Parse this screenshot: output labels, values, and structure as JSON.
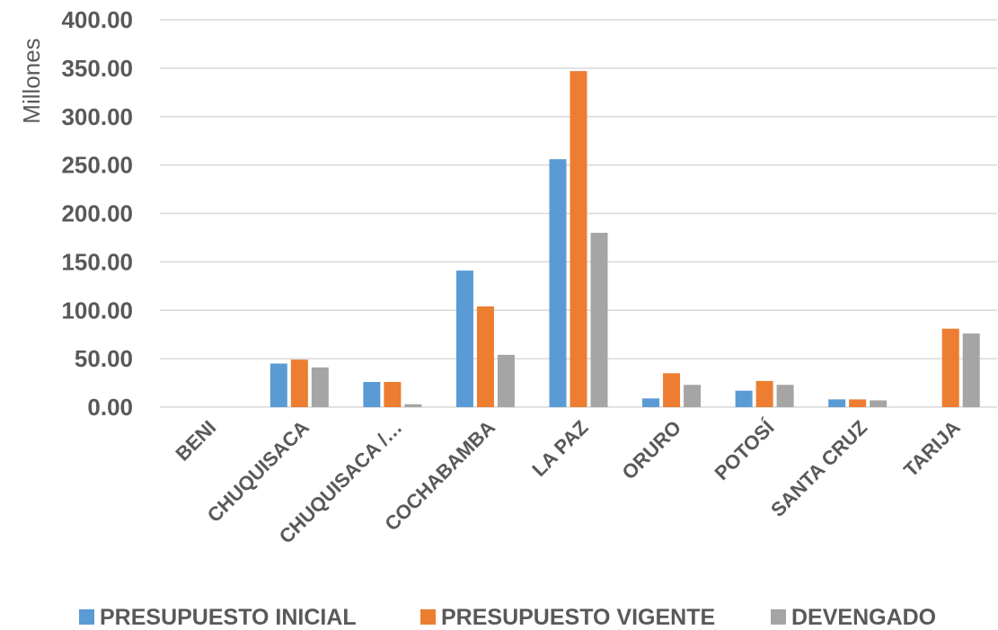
{
  "chart_data": {
    "type": "bar",
    "unit_label": "Millones",
    "categories": [
      "BENI",
      "CHUQUISACA",
      "CHUQUISACA /…",
      "COCHABAMBA",
      "LA PAZ",
      "ORURO",
      "POTOSÍ",
      "SANTA CRUZ",
      "TARIJA"
    ],
    "series": [
      {
        "name": "PRESUPUESTO INICIAL",
        "color": "#5b9bd5",
        "values": [
          0,
          45,
          26,
          141,
          256,
          9,
          17,
          8,
          0
        ]
      },
      {
        "name": "PRESUPUESTO VIGENTE",
        "color": "#ed7d31",
        "values": [
          0,
          49,
          26,
          104,
          347,
          35,
          27,
          8,
          81
        ]
      },
      {
        "name": "DEVENGADO",
        "color": "#a5a5a5",
        "values": [
          0,
          41,
          3,
          54,
          180,
          23,
          23,
          7,
          76
        ]
      }
    ],
    "ylim": [
      0,
      400
    ],
    "yticks": [
      "0.00",
      "50.00",
      "100.00",
      "150.00",
      "200.00",
      "250.00",
      "300.00",
      "350.00",
      "400.00"
    ],
    "grid": true,
    "legend_position": "bottom"
  }
}
